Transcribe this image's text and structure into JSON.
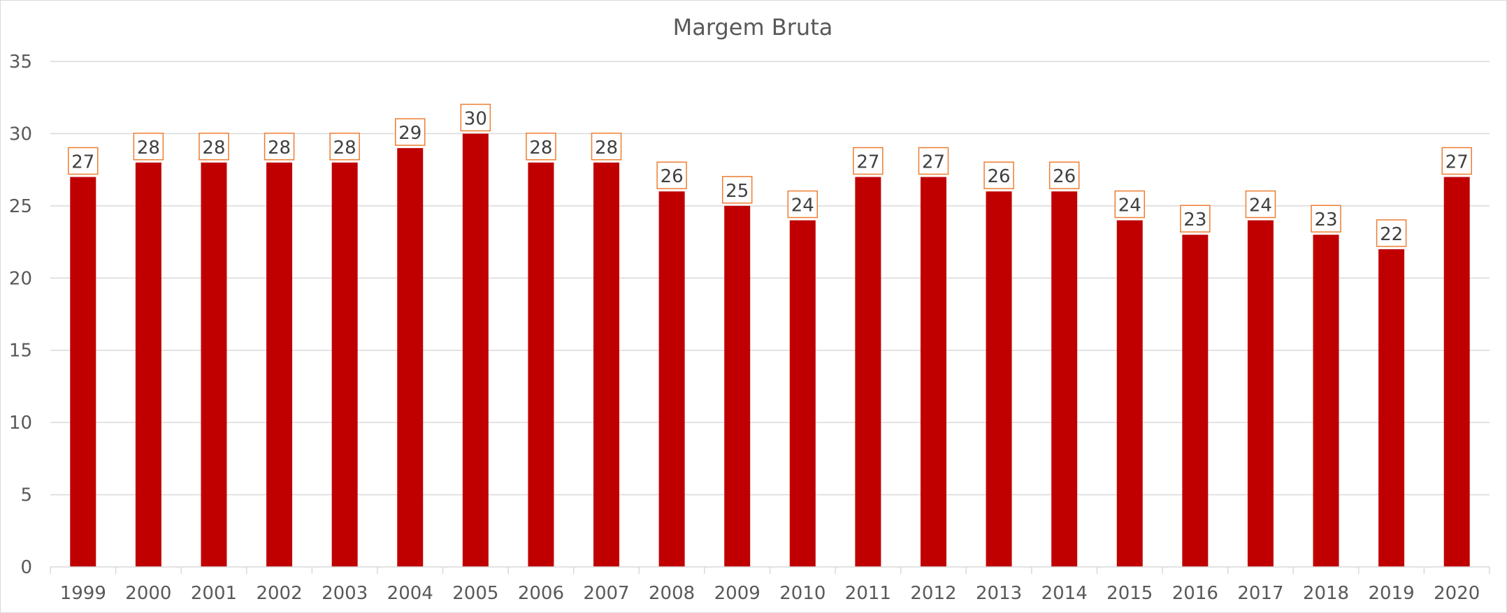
{
  "chart_data": {
    "type": "bar",
    "title": "Margem Bruta",
    "xlabel": "",
    "ylabel": "",
    "categories": [
      "1999",
      "2000",
      "2001",
      "2002",
      "2003",
      "2004",
      "2005",
      "2006",
      "2007",
      "2008",
      "2009",
      "2010",
      "2011",
      "2012",
      "2013",
      "2014",
      "2015",
      "2016",
      "2017",
      "2018",
      "2019",
      "2020"
    ],
    "values": [
      27,
      28,
      28,
      28,
      28,
      29,
      30,
      28,
      28,
      26,
      25,
      24,
      27,
      27,
      26,
      26,
      24,
      23,
      24,
      23,
      22,
      27
    ],
    "ylim": [
      0,
      35
    ],
    "yticks": [
      "0",
      "5",
      "10",
      "15",
      "20",
      "25",
      "30",
      "35"
    ],
    "grid": true,
    "legend": "none",
    "colors": {
      "bar": "#c00000",
      "label_border": "#ed7d31",
      "grid": "#d9d9d9",
      "text": "#595959"
    }
  }
}
